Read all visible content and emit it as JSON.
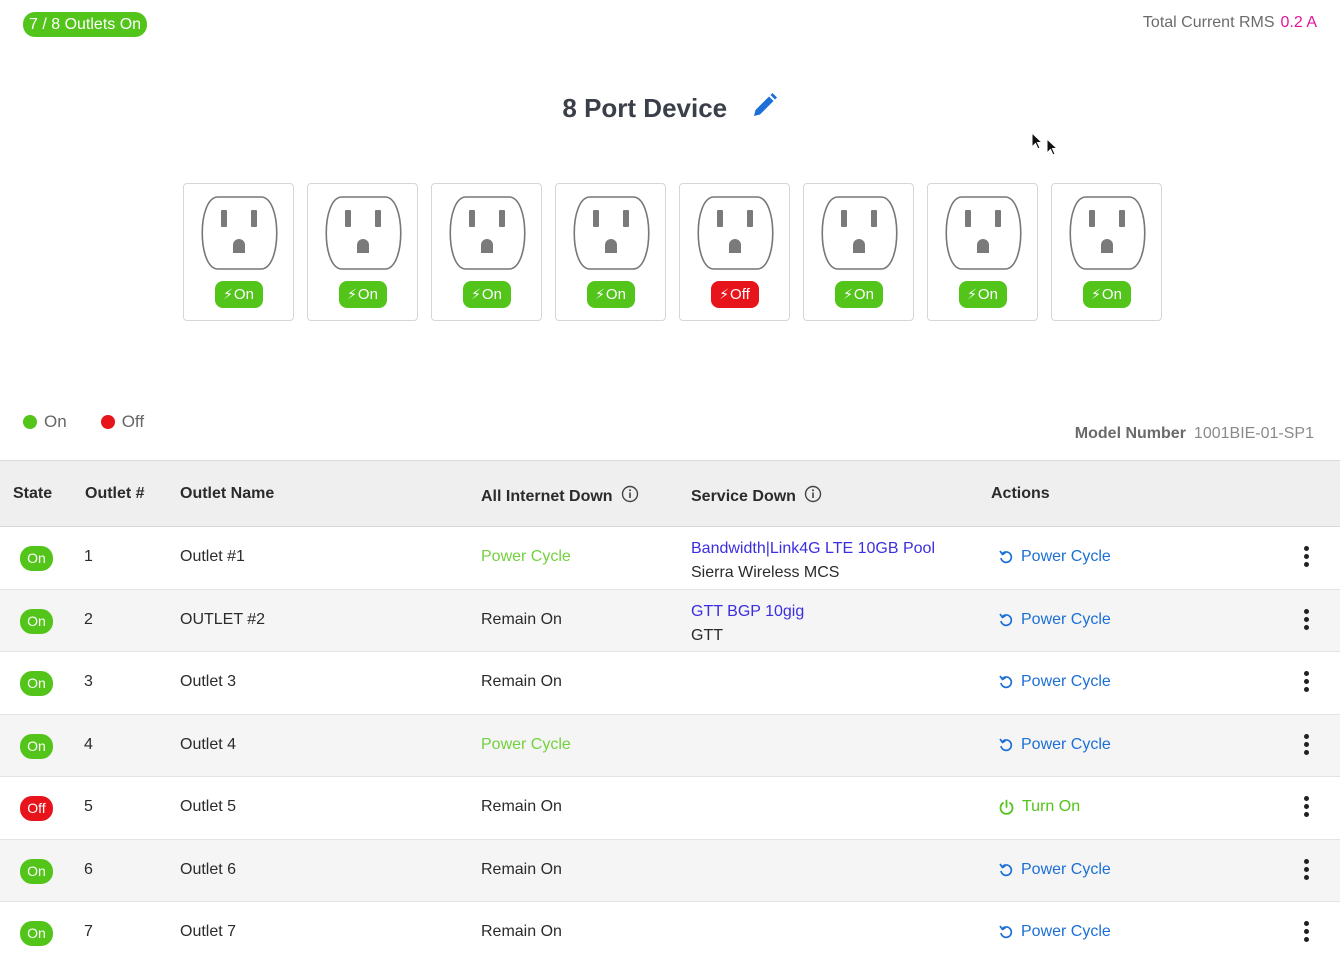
{
  "summary": {
    "badge": "7 / 8 Outlets On"
  },
  "total_current": {
    "label": "Total Current RMS",
    "value": "0.2 A"
  },
  "device": {
    "title": "8 Port Device"
  },
  "outlet_cards": [
    {
      "state": "On"
    },
    {
      "state": "On"
    },
    {
      "state": "On"
    },
    {
      "state": "On"
    },
    {
      "state": "Off"
    },
    {
      "state": "On"
    },
    {
      "state": "On"
    },
    {
      "state": "On"
    }
  ],
  "legend": {
    "on": "On",
    "off": "Off"
  },
  "model": {
    "label": "Model Number",
    "value": "1001BIE-01-SP1"
  },
  "table": {
    "headers": {
      "state": "State",
      "outlet_num": "Outlet #",
      "outlet_name": "Outlet Name",
      "all_internet_down": "All Internet Down",
      "service_down": "Service Down",
      "actions": "Actions"
    },
    "rows": [
      {
        "state": "On",
        "num": "1",
        "name": "Outlet #1",
        "internet_down": "Power Cycle",
        "service_link": "Bandwidth|Link4G LTE 10GB Pool",
        "service_provider": "Sierra Wireless MCS",
        "action": "Power Cycle"
      },
      {
        "state": "On",
        "num": "2",
        "name": "OUTLET #2",
        "internet_down": "Remain On",
        "service_link": "GTT BGP 10gig",
        "service_provider": "GTT",
        "action": "Power Cycle"
      },
      {
        "state": "On",
        "num": "3",
        "name": "Outlet 3",
        "internet_down": "Remain On",
        "service_link": "",
        "service_provider": "",
        "action": "Power Cycle"
      },
      {
        "state": "On",
        "num": "4",
        "name": "Outlet 4",
        "internet_down": "Power Cycle",
        "service_link": "",
        "service_provider": "",
        "action": "Power Cycle"
      },
      {
        "state": "Off",
        "num": "5",
        "name": "Outlet 5",
        "internet_down": "Remain On",
        "service_link": "",
        "service_provider": "",
        "action": "Turn On"
      },
      {
        "state": "On",
        "num": "6",
        "name": "Outlet 6",
        "internet_down": "Remain On",
        "service_link": "",
        "service_provider": "",
        "action": "Power Cycle"
      },
      {
        "state": "On",
        "num": "7",
        "name": "Outlet 7",
        "internet_down": "Remain On",
        "service_link": "",
        "service_provider": "",
        "action": "Power Cycle"
      }
    ]
  },
  "colors": {
    "on": "#52c41a",
    "off": "#e8141b",
    "action_blue": "#1b6fd6",
    "link_purple": "#3b2ee0",
    "current_value": "#e0179a"
  }
}
